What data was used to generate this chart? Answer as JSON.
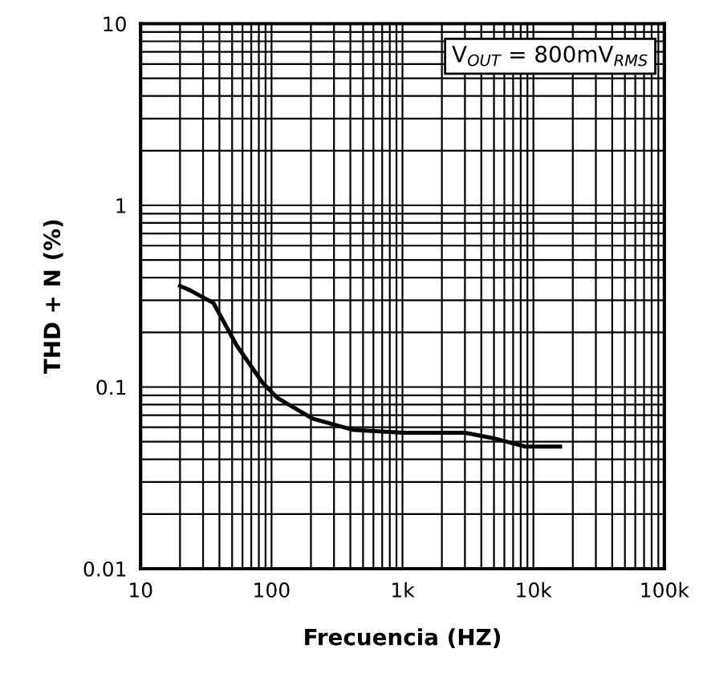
{
  "chart_data": {
    "type": "line",
    "xlabel": "Frecuencia (HZ)",
    "ylabel": "THD + N (%)",
    "annotations": [
      "V$_{OUT}$ = 800mV$_{RMS}$"
    ],
    "log": "xy",
    "grid": true,
    "marker": "none",
    "line_style": "solid",
    "xlim": [
      10,
      100000
    ],
    "ylim": [
      0.01,
      10
    ],
    "xticks": [
      10,
      100,
      {
        "value": 1000,
        "label": "1k"
      },
      {
        "value": 10000,
        "label": "10k"
      },
      {
        "value": 100000,
        "label": "100k"
      }
    ],
    "yticks": [
      0.01,
      0.1,
      1,
      10
    ],
    "series": [
      {
        "color": "#000000",
        "x": [
          20,
          24,
          36,
          54,
          85,
          111,
          206,
          424,
          1020,
          3000,
          5100,
          8700,
          16000
        ],
        "values": [
          0.36,
          0.34,
          0.29,
          0.17,
          0.106,
          0.087,
          0.067,
          0.058,
          0.056,
          0.056,
          0.052,
          0.047,
          0.047
        ]
      }
    ]
  }
}
